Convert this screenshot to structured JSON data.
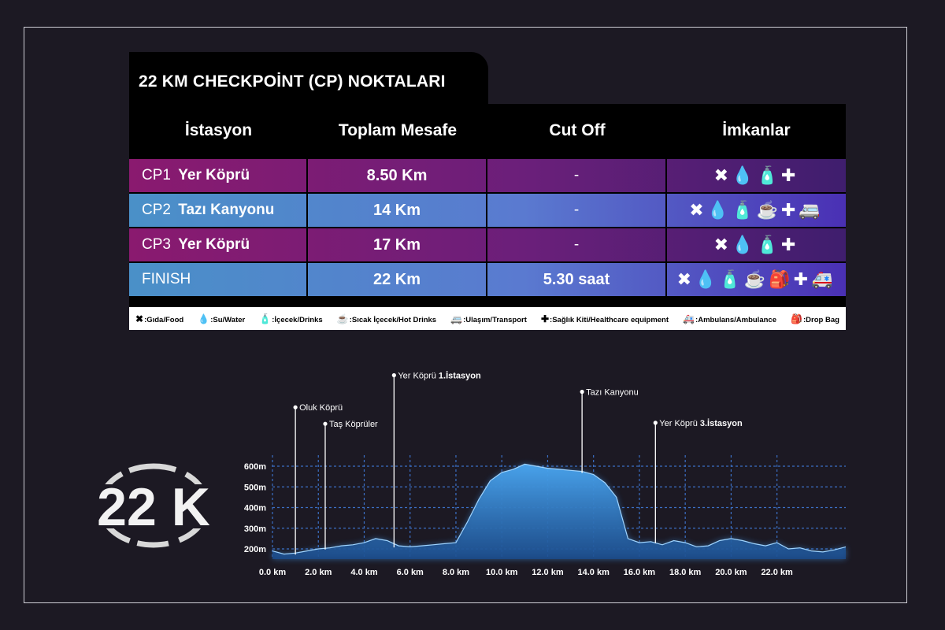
{
  "title": "22 KM CHECKPOİNT (CP) NOKTALARI",
  "headers": [
    "İstasyon",
    "Toplam Mesafe",
    "Cut Off",
    "İmkanlar"
  ],
  "rows": [
    {
      "cp": "CP1",
      "name": "Yer Köprü",
      "distance": "8.50 Km",
      "cutoff": "-",
      "amenities": "✖💧🧴✚",
      "style": "purple"
    },
    {
      "cp": "CP2",
      "name": "Tazı Kanyonu",
      "distance": "14 Km",
      "cutoff": "-",
      "amenities": "✖💧🧴☕✚🚐",
      "style": "blue"
    },
    {
      "cp": "CP3",
      "name": "Yer Köprü",
      "distance": "17 Km",
      "cutoff": "-",
      "amenities": "✖💧🧴✚",
      "style": "purple"
    },
    {
      "cp": "FINISH",
      "name": "",
      "distance": "22 Km",
      "cutoff": "5.30 saat",
      "amenities": "✖💧🧴☕🎒✚🚑",
      "style": "blue"
    }
  ],
  "legend": [
    {
      "glyph": "✖",
      "icon": "food-icon",
      "text": ":Gıda/Food"
    },
    {
      "glyph": "💧",
      "icon": "water-drop-icon",
      "text": ":Su/Water"
    },
    {
      "glyph": "🧴",
      "icon": "bottle-icon",
      "text": ":İçecek/Drinks"
    },
    {
      "glyph": "☕",
      "icon": "hot-drink-icon",
      "text": ":Sıcak İçecek/Hot Drinks"
    },
    {
      "glyph": "🚐",
      "icon": "transport-icon",
      "text": ":Ulaşım/Transport"
    },
    {
      "glyph": "✚",
      "icon": "medkit-icon",
      "text": ":Sağlık Kiti/Healthcare equipment"
    },
    {
      "glyph": "🚑",
      "icon": "ambulance-icon",
      "text": ":Ambulans/Ambulance"
    },
    {
      "glyph": "🎒",
      "icon": "drop-bag-icon",
      "text": ":Drop Bag"
    }
  ],
  "logo_text": "22 K",
  "colors": {
    "background": "#1c1923",
    "purple": "#8a1a6f",
    "blue": "#4a90c8",
    "profile_glow": "#3a8fe0"
  },
  "chart_data": {
    "type": "area",
    "x_unit": "km",
    "y_unit": "m",
    "xlim": [
      0,
      25
    ],
    "ylim": [
      150,
      650
    ],
    "x_ticks": [
      0,
      2,
      4,
      6,
      8,
      10,
      12,
      14,
      16,
      18,
      20,
      22
    ],
    "x_tick_labels": [
      "0.0 km",
      "2.0 km",
      "4.0 km",
      "6.0 km",
      "8.0 km",
      "10.0 km",
      "12.0 km",
      "14.0 km",
      "16.0 km",
      "18.0 km",
      "20.0 km",
      "22.0 km"
    ],
    "y_ticks": [
      200,
      300,
      400,
      500,
      600
    ],
    "y_tick_labels": [
      "200m",
      "300m",
      "400m",
      "500m",
      "600m"
    ],
    "grid": true,
    "x": [
      0,
      0.5,
      1,
      1.5,
      2,
      2.5,
      3,
      3.5,
      4,
      4.5,
      5,
      5.5,
      6,
      6.5,
      7,
      7.5,
      8,
      8.5,
      9,
      9.5,
      10,
      10.5,
      11,
      11.5,
      12,
      12.5,
      13,
      13.5,
      14,
      14.5,
      15,
      15.5,
      16,
      16.5,
      17,
      17.5,
      18,
      18.5,
      19,
      19.5,
      20,
      20.5,
      21,
      21.5,
      22,
      22.5,
      23,
      23.5,
      24,
      24.5,
      25
    ],
    "elevation": [
      190,
      175,
      180,
      190,
      200,
      205,
      215,
      220,
      230,
      250,
      240,
      215,
      210,
      215,
      220,
      225,
      230,
      330,
      440,
      530,
      570,
      585,
      610,
      600,
      590,
      585,
      580,
      575,
      560,
      520,
      450,
      250,
      230,
      235,
      220,
      240,
      230,
      210,
      215,
      240,
      250,
      240,
      225,
      215,
      230,
      200,
      205,
      190,
      185,
      195,
      210
    ],
    "annotations": [
      {
        "label": "Oluk Köprü",
        "bold": "",
        "x": 1.0,
        "top_elev": 885
      },
      {
        "label": "Taş Köprüler",
        "bold": "",
        "x": 2.3,
        "top_elev": 805
      },
      {
        "label": "Yer Köprü ",
        "bold": "1.İstasyon",
        "x": 5.3,
        "top_elev": 1040
      },
      {
        "label": "Tazı Kanyonu",
        "bold": "",
        "x": 13.5,
        "top_elev": 960
      },
      {
        "label": "Yer Köprü ",
        "bold": "3.İstasyon",
        "x": 16.7,
        "top_elev": 810
      }
    ]
  }
}
